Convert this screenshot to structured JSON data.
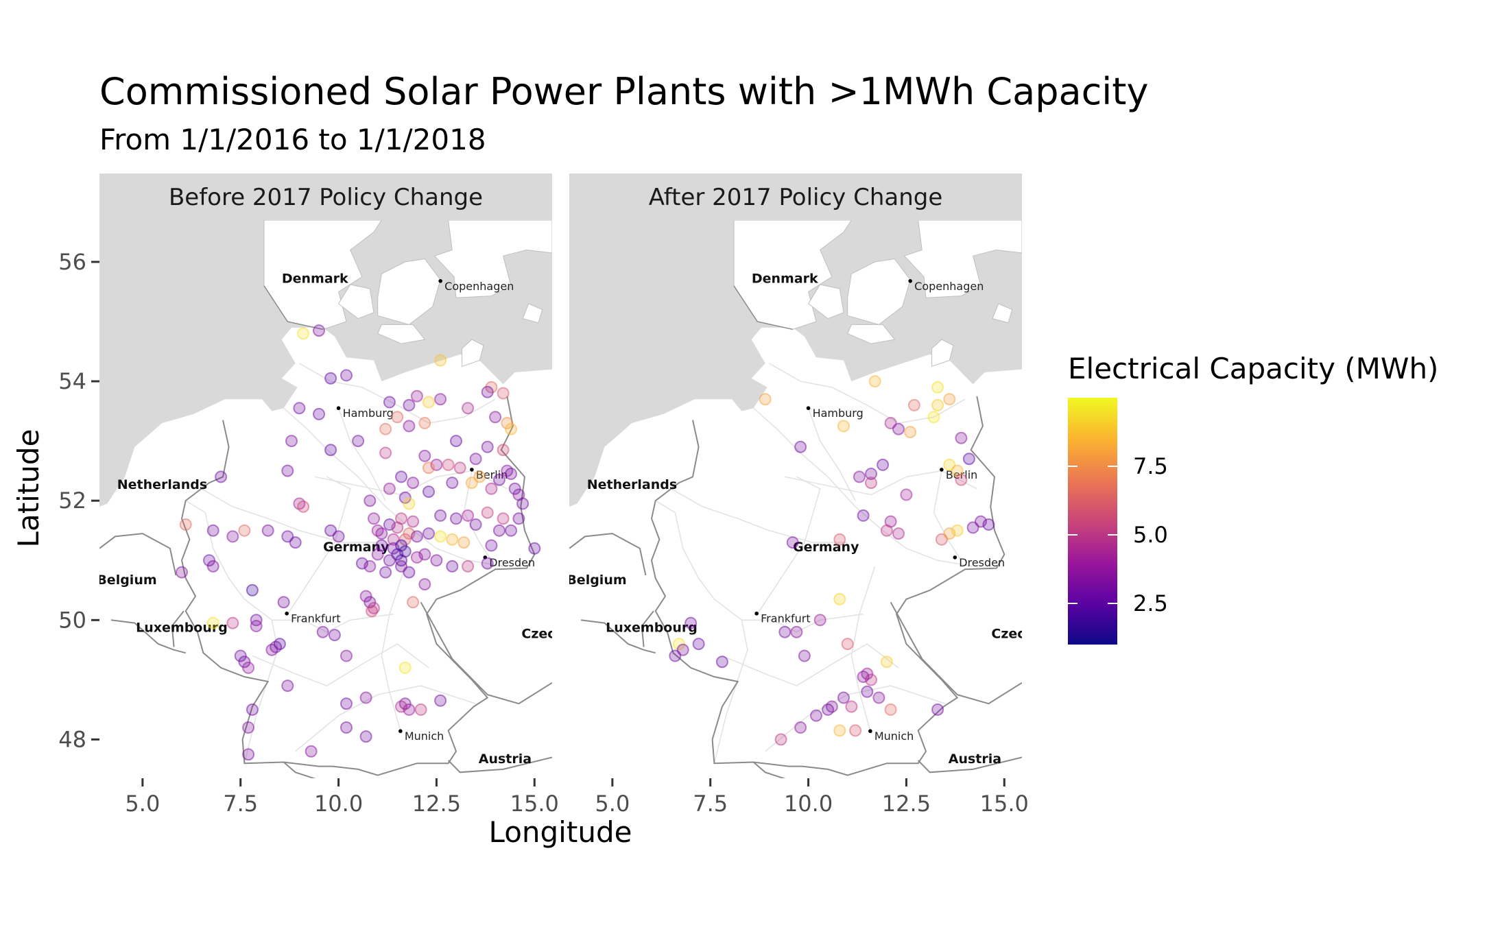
{
  "chart_data": {
    "type": "scatter",
    "title": "Commissioned Solar Power Plants with >1MWh Capacity",
    "subtitle": "From 1/1/2016 to 1/1/2018",
    "xlabel": "Longitude",
    "ylabel": "Latitude",
    "xlim": [
      3.9,
      15.45
    ],
    "ylim": [
      47.35,
      56.7
    ],
    "x_ticks": [
      5.0,
      7.5,
      10.0,
      12.5,
      15.0
    ],
    "x_tick_labels": [
      "5.0",
      "7.5",
      "10.0",
      "12.5",
      "15.0"
    ],
    "y_ticks": [
      48,
      50,
      52,
      54,
      56
    ],
    "y_tick_labels": [
      "48",
      "50",
      "52",
      "54",
      "56"
    ],
    "grid": false,
    "legend_placement": "right",
    "color_scale": {
      "title": "Electrical Capacity (MWh)",
      "palette": "plasma",
      "min": 1.0,
      "max": 10.0,
      "ticks": [
        2.5,
        5.0,
        7.5
      ],
      "tick_labels": [
        "2.5",
        "5.0",
        "7.5"
      ],
      "colors": [
        "#0d0887",
        "#5b02a3",
        "#9a179b",
        "#cb4678",
        "#eb7852",
        "#fbb32f",
        "#f0f921"
      ]
    },
    "map_labels": [
      {
        "text": "Denmark",
        "lon": 9.4,
        "lat": 55.65,
        "bold": true
      },
      {
        "text": "Copenhagen",
        "lon": 12.6,
        "lat": 55.68,
        "bold": false,
        "dot": true
      },
      {
        "text": "Hamburg",
        "lon": 10.0,
        "lat": 53.55,
        "bold": false,
        "dot": true
      },
      {
        "text": "Netherlands",
        "lon": 5.5,
        "lat": 52.2,
        "bold": true
      },
      {
        "text": "Berlin",
        "lon": 13.4,
        "lat": 52.52,
        "bold": false,
        "dot": true
      },
      {
        "text": "Germany",
        "lon": 10.45,
        "lat": 51.15,
        "bold": true
      },
      {
        "text": "Dresden",
        "lon": 13.74,
        "lat": 51.05,
        "bold": false,
        "dot": true
      },
      {
        "text": "Belgium",
        "lon": 4.6,
        "lat": 50.6,
        "bold": true
      },
      {
        "text": "Frankfurt",
        "lon": 8.68,
        "lat": 50.11,
        "bold": false,
        "dot": true
      },
      {
        "text": "Luxembourg",
        "lon": 6.0,
        "lat": 49.8,
        "bold": true
      },
      {
        "text": "Czec",
        "lon": 15.1,
        "lat": 49.7,
        "bold": true
      },
      {
        "text": "Munich",
        "lon": 11.58,
        "lat": 48.14,
        "bold": false,
        "dot": true
      },
      {
        "text": "Austria",
        "lon": 14.25,
        "lat": 47.6,
        "bold": true
      }
    ],
    "facets": [
      {
        "label": "Before 2017 Policy Change",
        "points": [
          [
            9.1,
            54.8,
            9.5
          ],
          [
            9.5,
            54.85,
            3.2
          ],
          [
            12.6,
            54.35,
            8.8
          ],
          [
            10.2,
            54.1,
            3.0
          ],
          [
            9.8,
            54.05,
            2.5
          ],
          [
            13.9,
            53.9,
            6.5
          ],
          [
            14.2,
            53.8,
            6.0
          ],
          [
            13.8,
            53.82,
            3.0
          ],
          [
            12.0,
            53.75,
            4.0
          ],
          [
            12.6,
            53.7,
            3.5
          ],
          [
            12.3,
            53.65,
            9.0
          ],
          [
            11.3,
            53.65,
            2.8
          ],
          [
            11.8,
            53.6,
            3.0
          ],
          [
            13.3,
            53.55,
            4.5
          ],
          [
            9.0,
            53.55,
            3.0
          ],
          [
            9.5,
            53.45,
            2.8
          ],
          [
            11.5,
            53.4,
            6.5
          ],
          [
            14.0,
            53.4,
            3.5
          ],
          [
            14.3,
            53.3,
            7.5
          ],
          [
            14.4,
            53.2,
            8.5
          ],
          [
            11.8,
            53.25,
            3.5
          ],
          [
            11.2,
            53.2,
            6.8
          ],
          [
            12.2,
            53.3,
            7.0
          ],
          [
            8.8,
            53.0,
            3.2
          ],
          [
            10.5,
            53.0,
            3.0
          ],
          [
            13.0,
            53.0,
            2.7
          ],
          [
            13.8,
            52.9,
            3.0
          ],
          [
            14.2,
            52.85,
            5.5
          ],
          [
            9.8,
            52.85,
            2.5
          ],
          [
            11.2,
            52.8,
            5.0
          ],
          [
            12.2,
            52.75,
            3.5
          ],
          [
            13.5,
            52.7,
            3.2
          ],
          [
            14.3,
            52.5,
            3.5
          ],
          [
            12.5,
            52.6,
            4.0
          ],
          [
            12.3,
            52.55,
            7.0
          ],
          [
            12.8,
            52.6,
            5.5
          ],
          [
            13.1,
            52.55,
            5.0
          ],
          [
            13.6,
            52.4,
            8.0
          ],
          [
            14.1,
            52.35,
            3.0
          ],
          [
            14.4,
            52.45,
            3.2
          ],
          [
            8.7,
            52.5,
            3.0
          ],
          [
            11.6,
            52.4,
            2.8
          ],
          [
            12.9,
            52.3,
            3.0
          ],
          [
            13.4,
            52.3,
            8.2
          ],
          [
            13.9,
            52.2,
            4.5
          ],
          [
            14.6,
            52.1,
            3.5
          ],
          [
            14.5,
            52.2,
            3.0
          ],
          [
            14.7,
            51.95,
            3.0
          ],
          [
            11.9,
            52.3,
            3.5
          ],
          [
            12.3,
            52.15,
            2.6
          ],
          [
            11.3,
            52.2,
            4.0
          ],
          [
            11.7,
            52.05,
            2.9
          ],
          [
            11.8,
            51.95,
            9.2
          ],
          [
            10.8,
            52.0,
            3.2
          ],
          [
            12.6,
            51.75,
            3.0
          ],
          [
            13.0,
            51.7,
            3.0
          ],
          [
            13.3,
            51.75,
            4.2
          ],
          [
            13.8,
            51.8,
            5.2
          ],
          [
            14.2,
            51.7,
            5.0
          ],
          [
            14.6,
            51.7,
            3.0
          ],
          [
            13.5,
            51.6,
            3.0
          ],
          [
            14.1,
            51.5,
            3.2
          ],
          [
            14.4,
            51.5,
            3.0
          ],
          [
            10.9,
            51.7,
            3.8
          ],
          [
            11.6,
            51.7,
            5.0
          ],
          [
            11.9,
            51.65,
            4.5
          ],
          [
            11.3,
            51.6,
            2.8
          ],
          [
            11.0,
            51.5,
            4.0
          ],
          [
            11.5,
            51.55,
            4.8
          ],
          [
            11.8,
            51.45,
            6.5
          ],
          [
            11.1,
            51.45,
            3.5
          ],
          [
            11.4,
            51.35,
            4.5
          ],
          [
            11.7,
            51.35,
            6.0
          ],
          [
            12.0,
            51.4,
            3.2
          ],
          [
            12.3,
            51.45,
            3.0
          ],
          [
            12.6,
            51.4,
            9.4
          ],
          [
            12.9,
            51.35,
            8.5
          ],
          [
            13.2,
            51.3,
            8.0
          ],
          [
            13.9,
            51.25,
            3.0
          ],
          [
            15.0,
            51.2,
            2.8
          ],
          [
            11.6,
            51.25,
            2.0
          ],
          [
            11.4,
            51.2,
            3.0
          ],
          [
            11.5,
            51.1,
            2.2
          ],
          [
            11.3,
            51.0,
            3.0
          ],
          [
            11.6,
            51.0,
            2.3
          ],
          [
            11.7,
            51.15,
            2.1
          ],
          [
            11.0,
            51.1,
            3.5
          ],
          [
            11.1,
            51.25,
            2.8
          ],
          [
            12.0,
            51.05,
            4.0
          ],
          [
            12.2,
            51.1,
            3.5
          ],
          [
            12.5,
            51.0,
            3.2
          ],
          [
            12.9,
            50.9,
            2.8
          ],
          [
            13.3,
            50.9,
            5.0
          ],
          [
            13.8,
            50.95,
            3.0
          ],
          [
            11.2,
            50.8,
            3.0
          ],
          [
            11.8,
            50.8,
            2.7
          ],
          [
            10.8,
            50.9,
            3.5
          ],
          [
            10.6,
            50.95,
            2.8
          ],
          [
            11.6,
            50.9,
            3.2
          ],
          [
            10.7,
            50.4,
            3.5
          ],
          [
            10.8,
            50.3,
            3.2
          ],
          [
            10.85,
            50.15,
            5.5
          ],
          [
            10.9,
            50.2,
            4.8
          ],
          [
            11.9,
            50.3,
            6.5
          ],
          [
            12.2,
            50.6,
            3.5
          ],
          [
            9.0,
            51.95,
            4.2
          ],
          [
            9.1,
            51.9,
            5.5
          ],
          [
            8.7,
            51.4,
            3.0
          ],
          [
            8.9,
            51.3,
            2.9
          ],
          [
            9.8,
            51.5,
            2.8
          ],
          [
            10.0,
            51.4,
            3.0
          ],
          [
            8.2,
            51.5,
            3.2
          ],
          [
            7.6,
            51.5,
            6.5
          ],
          [
            7.3,
            51.4,
            3.5
          ],
          [
            6.8,
            51.5,
            3.0
          ],
          [
            6.1,
            51.6,
            6.5
          ],
          [
            6.0,
            50.8,
            3.5
          ],
          [
            6.7,
            51.0,
            3.0
          ],
          [
            6.8,
            50.9,
            3.2
          ],
          [
            7.0,
            52.4,
            3.0
          ],
          [
            7.8,
            50.5,
            2.0
          ],
          [
            7.9,
            50.0,
            3.0
          ],
          [
            7.9,
            49.9,
            3.5
          ],
          [
            7.3,
            49.95,
            5.0
          ],
          [
            6.8,
            49.95,
            9.5
          ],
          [
            7.5,
            49.4,
            3.0
          ],
          [
            7.6,
            49.3,
            2.8
          ],
          [
            7.7,
            49.2,
            4.0
          ],
          [
            8.4,
            49.55,
            3.0
          ],
          [
            8.5,
            49.6,
            2.6
          ],
          [
            8.3,
            49.5,
            3.5
          ],
          [
            8.6,
            50.3,
            3.0
          ],
          [
            8.7,
            48.9,
            3.2
          ],
          [
            7.7,
            48.2,
            3.5
          ],
          [
            7.8,
            48.5,
            3.0
          ],
          [
            7.7,
            47.75,
            3.2
          ],
          [
            9.3,
            47.8,
            3.5
          ],
          [
            9.6,
            49.8,
            3.2
          ],
          [
            9.9,
            49.75,
            3.0
          ],
          [
            10.2,
            49.4,
            3.5
          ],
          [
            10.2,
            48.6,
            3.0
          ],
          [
            10.2,
            48.2,
            3.0
          ],
          [
            10.7,
            48.05,
            3.0
          ],
          [
            10.7,
            48.7,
            3.5
          ],
          [
            11.7,
            48.6,
            3.2
          ],
          [
            11.8,
            48.5,
            4.0
          ],
          [
            12.1,
            48.5,
            5.0
          ],
          [
            12.6,
            48.65,
            3.0
          ],
          [
            11.6,
            48.55,
            4.6
          ],
          [
            11.7,
            49.2,
            9.6
          ]
        ]
      },
      {
        "label": "After 2017 Policy Change",
        "points": [
          [
            11.7,
            54.0,
            8.5
          ],
          [
            13.3,
            53.9,
            9.5
          ],
          [
            13.6,
            53.7,
            8.0
          ],
          [
            13.3,
            53.6,
            9.0
          ],
          [
            12.7,
            53.6,
            6.5
          ],
          [
            13.2,
            53.4,
            9.6
          ],
          [
            8.9,
            53.7,
            8.0
          ],
          [
            10.9,
            53.25,
            8.5
          ],
          [
            12.1,
            53.3,
            4.5
          ],
          [
            12.3,
            53.2,
            3.5
          ],
          [
            12.6,
            53.15,
            8.0
          ],
          [
            9.8,
            52.9,
            3.0
          ],
          [
            13.9,
            53.05,
            3.5
          ],
          [
            14.1,
            52.7,
            2.5
          ],
          [
            11.3,
            52.4,
            3.5
          ],
          [
            11.6,
            52.45,
            3.2
          ],
          [
            11.9,
            52.6,
            2.8
          ],
          [
            11.6,
            52.3,
            5.0
          ],
          [
            13.6,
            52.6,
            9.2
          ],
          [
            13.8,
            52.5,
            8.5
          ],
          [
            13.9,
            52.35,
            5.5
          ],
          [
            11.4,
            51.75,
            3.0
          ],
          [
            12.1,
            51.65,
            4.0
          ],
          [
            12.3,
            51.45,
            4.5
          ],
          [
            12.5,
            52.1,
            4.2
          ],
          [
            12.0,
            51.5,
            5.0
          ],
          [
            13.4,
            51.35,
            6.0
          ],
          [
            13.6,
            51.45,
            8.0
          ],
          [
            13.8,
            51.5,
            9.0
          ],
          [
            14.2,
            51.55,
            3.0
          ],
          [
            14.4,
            51.65,
            3.2
          ],
          [
            14.6,
            51.6,
            2.8
          ],
          [
            9.6,
            51.3,
            3.2
          ],
          [
            10.8,
            51.35,
            6.0
          ],
          [
            7.0,
            49.95,
            3.0
          ],
          [
            6.7,
            49.6,
            9.5
          ],
          [
            7.2,
            49.6,
            2.8
          ],
          [
            6.8,
            49.5,
            3.2
          ],
          [
            6.6,
            49.4,
            3.0
          ],
          [
            7.8,
            49.3,
            2.8
          ],
          [
            9.4,
            49.8,
            3.0
          ],
          [
            9.7,
            49.8,
            3.5
          ],
          [
            9.9,
            49.4,
            3.2
          ],
          [
            10.3,
            50.0,
            4.0
          ],
          [
            10.8,
            50.35,
            9.2
          ],
          [
            11.0,
            49.6,
            6.0
          ],
          [
            11.5,
            49.1,
            4.0
          ],
          [
            11.6,
            49.0,
            5.0
          ],
          [
            11.4,
            49.05,
            3.5
          ],
          [
            11.8,
            48.7,
            3.5
          ],
          [
            11.5,
            48.8,
            3.0
          ],
          [
            11.1,
            48.55,
            5.0
          ],
          [
            10.9,
            48.7,
            3.2
          ],
          [
            10.5,
            48.5,
            3.0
          ],
          [
            10.6,
            48.55,
            3.5
          ],
          [
            10.2,
            48.4,
            3.2
          ],
          [
            9.3,
            48.0,
            5.0
          ],
          [
            9.8,
            48.2,
            3.5
          ],
          [
            10.8,
            48.15,
            8.5
          ],
          [
            11.2,
            48.15,
            6.0
          ],
          [
            12.1,
            48.5,
            6.5
          ],
          [
            13.3,
            48.5,
            3.0
          ],
          [
            12.0,
            49.3,
            9.0
          ]
        ]
      }
    ]
  }
}
